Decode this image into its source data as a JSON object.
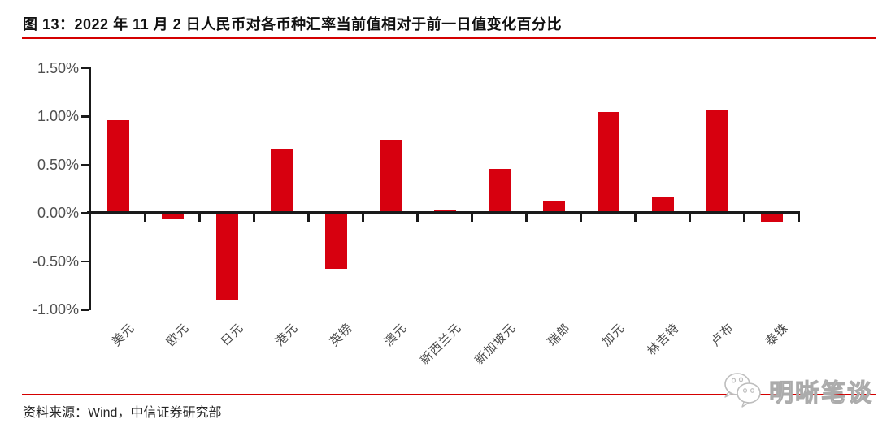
{
  "header": {
    "title": "图 13：2022 年 11 月 2 日人民币对各币种汇率当前值相对于前一日值变化百分比"
  },
  "chart_data": {
    "type": "bar",
    "title": "2022 年 11 月 2 日人民币对各币种汇率当前值相对于前一日值变化百分比",
    "categories": [
      "美元",
      "欧元",
      "日元",
      "港元",
      "英镑",
      "澳元",
      "新西兰元",
      "新加坡元",
      "瑞郎",
      "加元",
      "林吉特",
      "卢布",
      "泰铢"
    ],
    "values": [
      0.96,
      -0.07,
      -0.9,
      0.66,
      -0.58,
      0.75,
      0.03,
      0.45,
      0.12,
      1.04,
      0.17,
      1.06,
      -0.1
    ],
    "xlabel": "",
    "ylabel": "",
    "ylim": [
      -1.0,
      1.5
    ],
    "y_ticks": [
      {
        "label": "1.50%",
        "value": 1.5
      },
      {
        "label": "1.00%",
        "value": 1.0
      },
      {
        "label": "0.50%",
        "value": 0.5
      },
      {
        "label": "0.00%",
        "value": 0.0
      },
      {
        "label": "-0.50%",
        "value": -0.5
      },
      {
        "label": "-1.00%",
        "value": -1.0
      }
    ],
    "grid": false,
    "legend_position": "none",
    "bar_color": "#d7000f"
  },
  "footer": {
    "source": "资料来源：Wind，中信证券研究部"
  },
  "watermark": {
    "text": "明晰笔谈",
    "icon": "wechat-chat-bubbles-icon"
  },
  "colors": {
    "bar": "#d7000f",
    "rule": "#d40000",
    "axis": "#1a1a1a",
    "tick_label": "#4f4f4f",
    "watermark": "#ababab"
  }
}
